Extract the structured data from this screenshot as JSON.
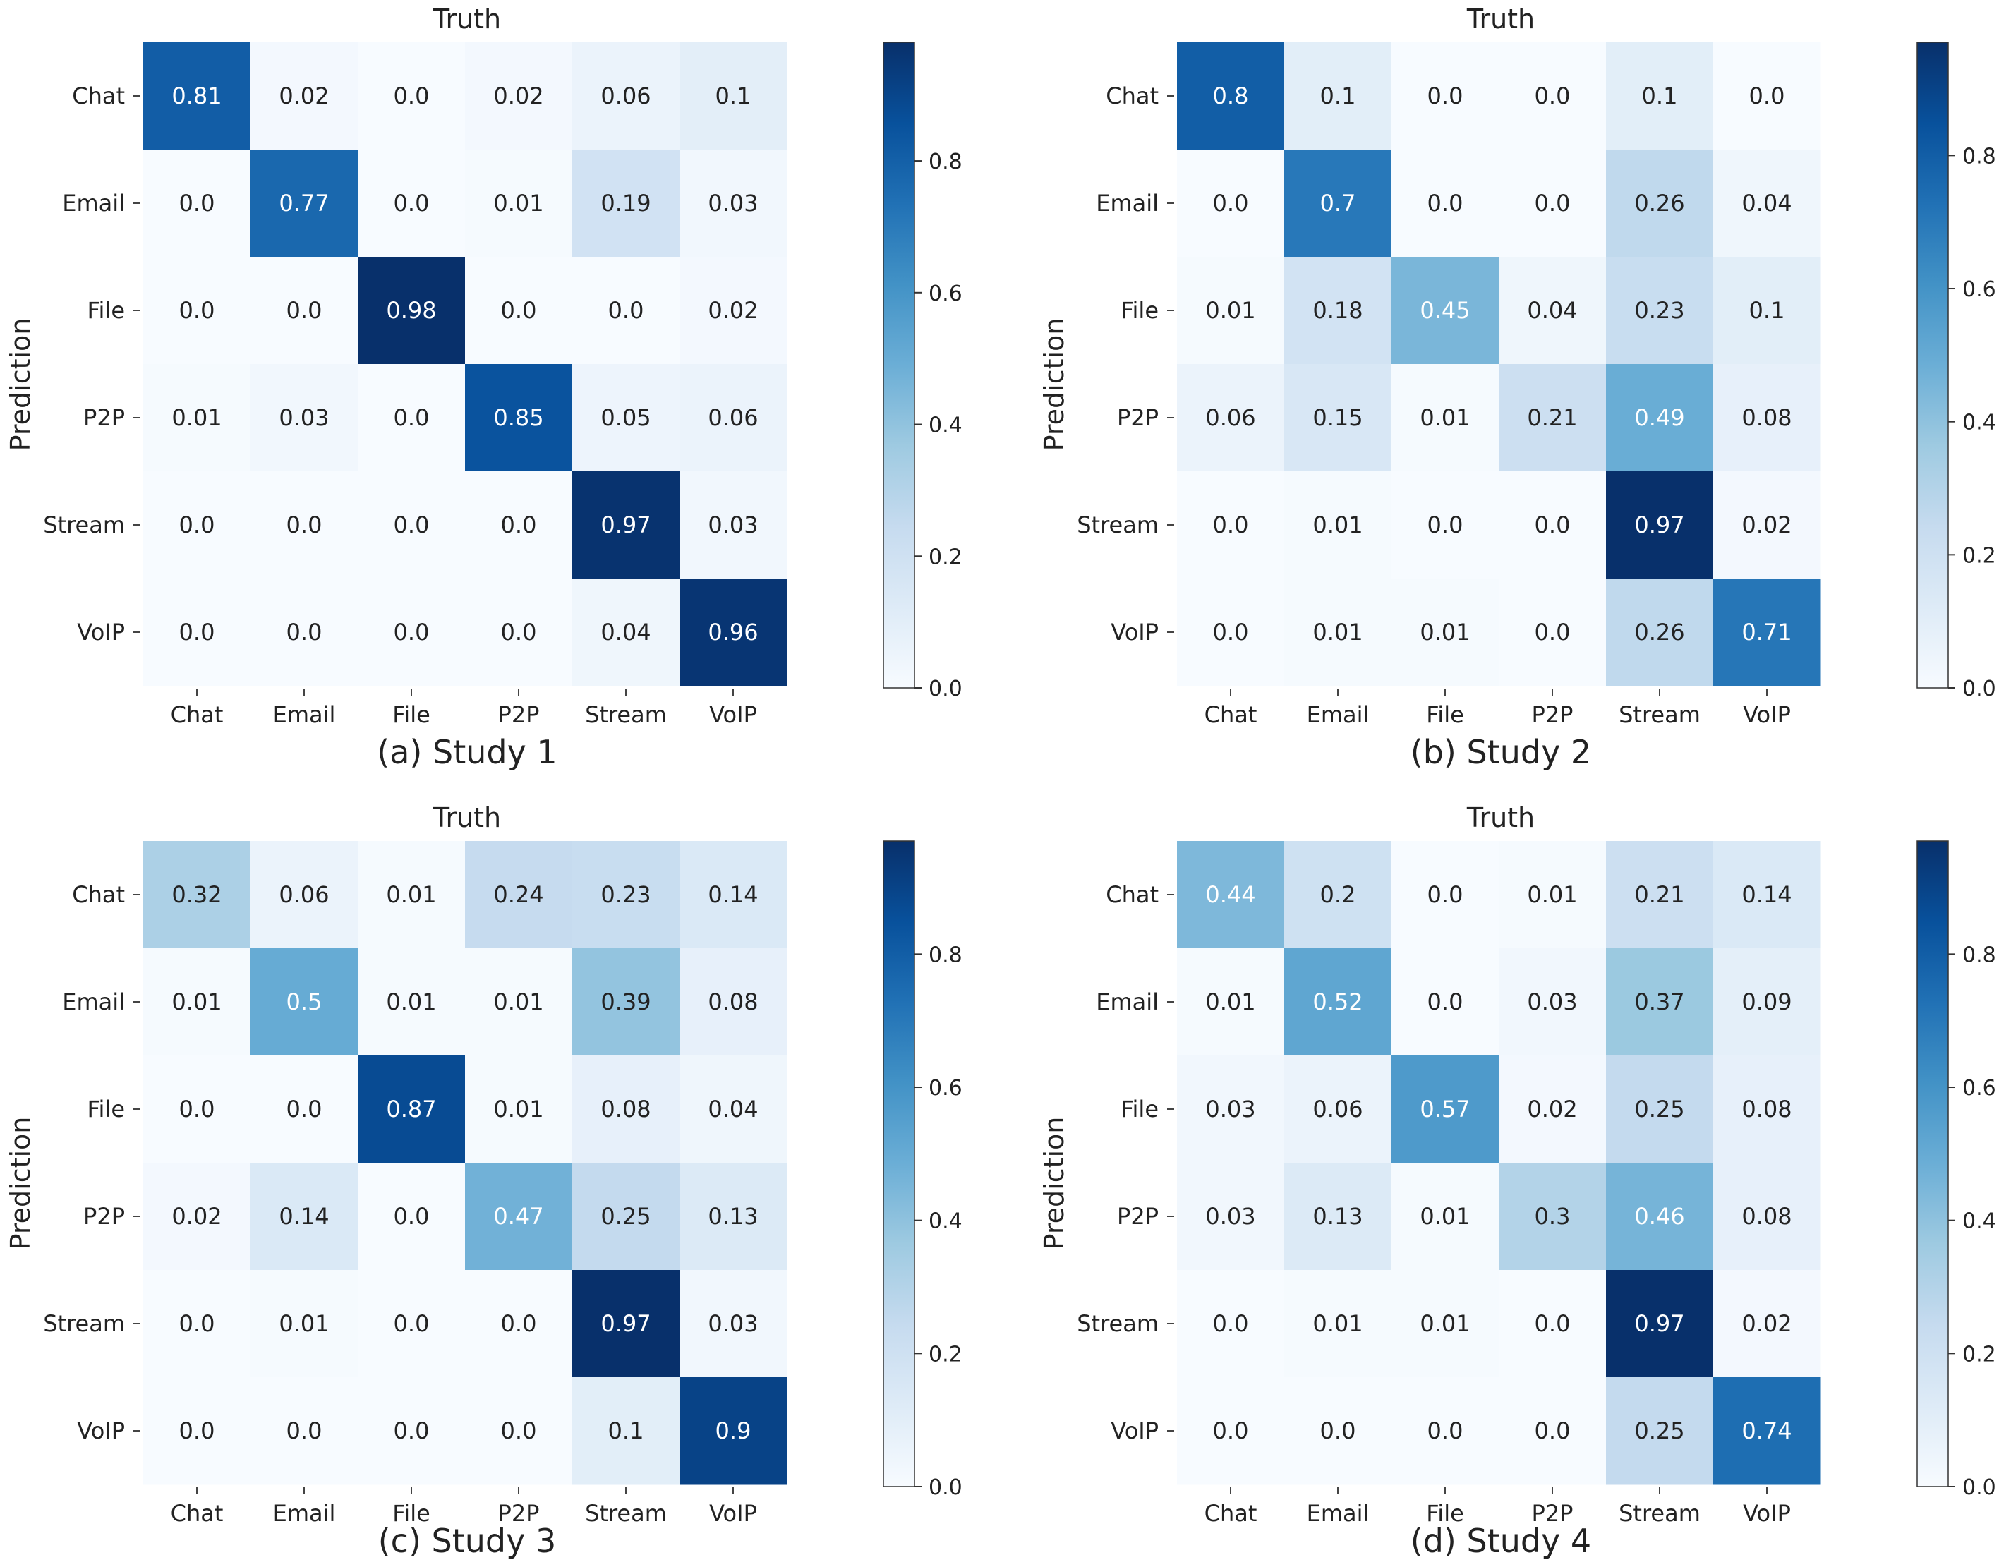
{
  "colors": {
    "cmap": [
      "#f7fbff",
      "#deebf7",
      "#c6dbef",
      "#9ecae1",
      "#6baed6",
      "#4292c6",
      "#2171b5",
      "#08519c",
      "#08306b"
    ],
    "light_text": "#ffffff",
    "dark_text": "#222222"
  },
  "chart_data": [
    {
      "type": "heatmap",
      "caption": "(a) Study 1",
      "title": "Truth",
      "xlabel": "",
      "ylabel": "Prediction",
      "x_categories": [
        "Chat",
        "Email",
        "File",
        "P2P",
        "Stream",
        "VoIP"
      ],
      "y_categories": [
        "Chat",
        "Email",
        "File",
        "P2P",
        "Stream",
        "VoIP"
      ],
      "values": [
        [
          0.81,
          0.02,
          0.0,
          0.02,
          0.06,
          0.1
        ],
        [
          0.0,
          0.77,
          0.0,
          0.01,
          0.19,
          0.03
        ],
        [
          0.0,
          0.0,
          0.98,
          0.0,
          0.0,
          0.02
        ],
        [
          0.01,
          0.03,
          0.0,
          0.85,
          0.05,
          0.06
        ],
        [
          0.0,
          0.0,
          0.0,
          0.0,
          0.97,
          0.03
        ],
        [
          0.0,
          0.0,
          0.0,
          0.0,
          0.04,
          0.96
        ]
      ],
      "value_labels": [
        [
          "0.81",
          "0.02",
          "0.0",
          "0.02",
          "0.06",
          "0.1"
        ],
        [
          "0.0",
          "0.77",
          "0.0",
          "0.01",
          "0.19",
          "0.03"
        ],
        [
          "0.0",
          "0.0",
          "0.98",
          "0.0",
          "0.0",
          "0.02"
        ],
        [
          "0.01",
          "0.03",
          "0.0",
          "0.85",
          "0.05",
          "0.06"
        ],
        [
          "0.0",
          "0.0",
          "0.0",
          "0.0",
          "0.97",
          "0.03"
        ],
        [
          "0.0",
          "0.0",
          "0.0",
          "0.0",
          "0.04",
          "0.96"
        ]
      ],
      "colorbar": {
        "range": [
          0.0,
          0.98
        ],
        "ticks": [
          0.0,
          0.2,
          0.4,
          0.6,
          0.8
        ],
        "tick_labels": [
          "0.0",
          "0.2",
          "0.4",
          "0.6",
          "0.8"
        ]
      }
    },
    {
      "type": "heatmap",
      "caption": "(b) Study 2",
      "title": "Truth",
      "xlabel": "",
      "ylabel": "Prediction",
      "x_categories": [
        "Chat",
        "Email",
        "File",
        "P2P",
        "Stream",
        "VoIP"
      ],
      "y_categories": [
        "Chat",
        "Email",
        "File",
        "P2P",
        "Stream",
        "VoIP"
      ],
      "values": [
        [
          0.8,
          0.1,
          0.0,
          0.0,
          0.1,
          0.0
        ],
        [
          0.0,
          0.7,
          0.0,
          0.0,
          0.26,
          0.04
        ],
        [
          0.01,
          0.18,
          0.45,
          0.04,
          0.23,
          0.1
        ],
        [
          0.06,
          0.15,
          0.01,
          0.21,
          0.49,
          0.08
        ],
        [
          0.0,
          0.01,
          0.0,
          0.0,
          0.97,
          0.02
        ],
        [
          0.0,
          0.01,
          0.01,
          0.0,
          0.26,
          0.71
        ]
      ],
      "value_labels": [
        [
          "0.8",
          "0.1",
          "0.0",
          "0.0",
          "0.1",
          "0.0"
        ],
        [
          "0.0",
          "0.7",
          "0.0",
          "0.0",
          "0.26",
          "0.04"
        ],
        [
          "0.01",
          "0.18",
          "0.45",
          "0.04",
          "0.23",
          "0.1"
        ],
        [
          "0.06",
          "0.15",
          "0.01",
          "0.21",
          "0.49",
          "0.08"
        ],
        [
          "0.0",
          "0.01",
          "0.0",
          "0.0",
          "0.97",
          "0.02"
        ],
        [
          "0.0",
          "0.01",
          "0.01",
          "0.0",
          "0.26",
          "0.71"
        ]
      ],
      "colorbar": {
        "range": [
          0.0,
          0.97
        ],
        "ticks": [
          0.0,
          0.2,
          0.4,
          0.6,
          0.8
        ],
        "tick_labels": [
          "0.0",
          "0.2",
          "0.4",
          "0.6",
          "0.8"
        ]
      }
    },
    {
      "type": "heatmap",
      "caption": "(c) Study 3",
      "title": "Truth",
      "xlabel": "",
      "ylabel": "Prediction",
      "x_categories": [
        "Chat",
        "Email",
        "File",
        "P2P",
        "Stream",
        "VoIP"
      ],
      "y_categories": [
        "Chat",
        "Email",
        "File",
        "P2P",
        "Stream",
        "VoIP"
      ],
      "values": [
        [
          0.32,
          0.06,
          0.01,
          0.24,
          0.23,
          0.14
        ],
        [
          0.01,
          0.5,
          0.01,
          0.01,
          0.39,
          0.08
        ],
        [
          0.0,
          0.0,
          0.87,
          0.01,
          0.08,
          0.04
        ],
        [
          0.02,
          0.14,
          0.0,
          0.47,
          0.25,
          0.13
        ],
        [
          0.0,
          0.01,
          0.0,
          0.0,
          0.97,
          0.03
        ],
        [
          0.0,
          0.0,
          0.0,
          0.0,
          0.1,
          0.9
        ]
      ],
      "value_labels": [
        [
          "0.32",
          "0.06",
          "0.01",
          "0.24",
          "0.23",
          "0.14"
        ],
        [
          "0.01",
          "0.5",
          "0.01",
          "0.01",
          "0.39",
          "0.08"
        ],
        [
          "0.0",
          "0.0",
          "0.87",
          "0.01",
          "0.08",
          "0.04"
        ],
        [
          "0.02",
          "0.14",
          "0.0",
          "0.47",
          "0.25",
          "0.13"
        ],
        [
          "0.0",
          "0.01",
          "0.0",
          "0.0",
          "0.97",
          "0.03"
        ],
        [
          "0.0",
          "0.0",
          "0.0",
          "0.0",
          "0.1",
          "0.9"
        ]
      ],
      "colorbar": {
        "range": [
          0.0,
          0.97
        ],
        "ticks": [
          0.0,
          0.2,
          0.4,
          0.6,
          0.8
        ],
        "tick_labels": [
          "0.0",
          "0.2",
          "0.4",
          "0.6",
          "0.8"
        ]
      }
    },
    {
      "type": "heatmap",
      "caption": "(d) Study 4",
      "title": "Truth",
      "xlabel": "",
      "ylabel": "Prediction",
      "x_categories": [
        "Chat",
        "Email",
        "File",
        "P2P",
        "Stream",
        "VoIP"
      ],
      "y_categories": [
        "Chat",
        "Email",
        "File",
        "P2P",
        "Stream",
        "VoIP"
      ],
      "values": [
        [
          0.44,
          0.2,
          0.0,
          0.01,
          0.21,
          0.14
        ],
        [
          0.01,
          0.52,
          0.0,
          0.03,
          0.37,
          0.09
        ],
        [
          0.03,
          0.06,
          0.57,
          0.02,
          0.25,
          0.08
        ],
        [
          0.03,
          0.13,
          0.01,
          0.3,
          0.46,
          0.08
        ],
        [
          0.0,
          0.01,
          0.01,
          0.0,
          0.97,
          0.02
        ],
        [
          0.0,
          0.0,
          0.0,
          0.0,
          0.25,
          0.74
        ]
      ],
      "value_labels": [
        [
          "0.44",
          "0.2",
          "0.0",
          "0.01",
          "0.21",
          "0.14"
        ],
        [
          "0.01",
          "0.52",
          "0.0",
          "0.03",
          "0.37",
          "0.09"
        ],
        [
          "0.03",
          "0.06",
          "0.57",
          "0.02",
          "0.25",
          "0.08"
        ],
        [
          "0.03",
          "0.13",
          "0.01",
          "0.3",
          "0.46",
          "0.08"
        ],
        [
          "0.0",
          "0.01",
          "0.01",
          "0.0",
          "0.97",
          "0.02"
        ],
        [
          "0.0",
          "0.0",
          "0.0",
          "0.0",
          "0.25",
          "0.74"
        ]
      ],
      "colorbar": {
        "range": [
          0.0,
          0.97
        ],
        "ticks": [
          0.0,
          0.2,
          0.4,
          0.6,
          0.8
        ],
        "tick_labels": [
          "0.0",
          "0.2",
          "0.4",
          "0.6",
          "0.8"
        ]
      }
    }
  ]
}
